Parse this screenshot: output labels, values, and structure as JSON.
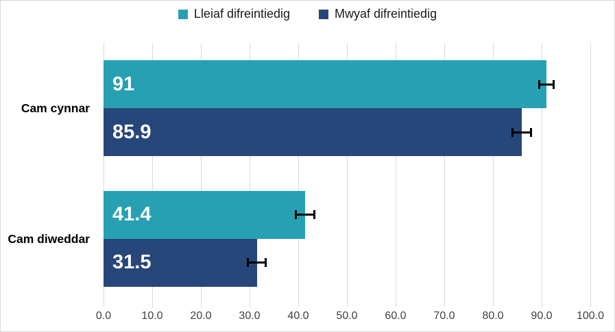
{
  "chart_data": {
    "type": "bar",
    "orientation": "horizontal",
    "title": "",
    "categories": [
      "Cam cynnar",
      "Cam diweddar"
    ],
    "series": [
      {
        "name": "Lleiaf difreintiedig",
        "color": "#26A0B2",
        "values": [
          91,
          41.4
        ],
        "labels": [
          "91",
          "41.4"
        ],
        "errors": [
          1.5,
          1.9
        ]
      },
      {
        "name": "Mwyaf difreintiedig",
        "color": "#27467A",
        "values": [
          85.9,
          31.5
        ],
        "labels": [
          "85.9",
          "31.5"
        ],
        "errors": [
          1.9,
          1.8
        ]
      }
    ],
    "xlim": [
      0,
      100
    ],
    "xtick_labels": [
      "0.0",
      "10.0",
      "20.0",
      "30.0",
      "40.0",
      "50.0",
      "60.0",
      "70.0",
      "80.0",
      "90.0",
      "100.0"
    ],
    "grid": true,
    "legend_position": "top",
    "error_bar_color": "#000000",
    "gridline_color": "#D9D9D9",
    "data_label_color": "#FFFFFF"
  }
}
